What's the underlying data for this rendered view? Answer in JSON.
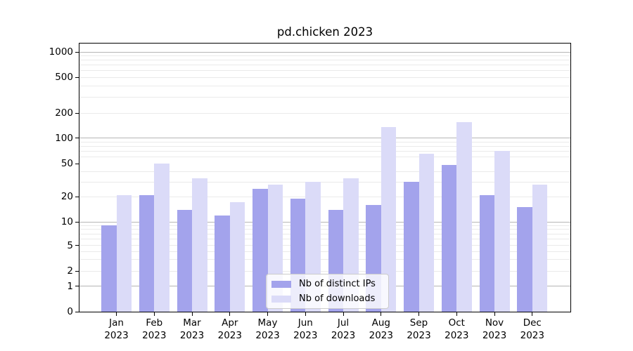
{
  "title": "pd.chicken 2023",
  "chart_data": {
    "type": "bar",
    "title": "pd.chicken 2023",
    "categories": [
      "Jan 2023",
      "Feb 2023",
      "Mar 2023",
      "Apr 2023",
      "May 2023",
      "Jun 2023",
      "Jul 2023",
      "Aug 2023",
      "Sep 2023",
      "Oct 2023",
      "Nov 2023",
      "Dec 2023"
    ],
    "series": [
      {
        "name": "Nb of distinct IPs",
        "color": "#a3a3ec",
        "values": [
          9,
          21,
          14,
          12,
          25,
          19,
          14,
          16,
          30,
          48,
          21,
          15
        ]
      },
      {
        "name": "Nb of downloads",
        "color": "#dbdbf8",
        "values": [
          21,
          50,
          33,
          17,
          28,
          30,
          33,
          135,
          65,
          155,
          70,
          28
        ]
      }
    ],
    "xlabel": "",
    "ylabel": "",
    "yaxis": {
      "scale": "symlog",
      "ticks": [
        1000,
        500,
        200,
        100,
        50,
        20,
        10,
        5,
        2,
        1,
        0
      ],
      "major_grid_values": [
        1,
        10,
        100,
        1000
      ],
      "minor_grid_values": [
        2,
        3,
        4,
        5,
        6,
        7,
        8,
        9,
        20,
        30,
        40,
        60,
        70,
        80,
        90,
        200,
        300,
        400,
        500,
        600,
        700,
        800,
        900
      ],
      "ylim": [
        0,
        1260
      ],
      "grid": true
    },
    "legend_position": "lower center"
  },
  "legend": {
    "entries": [
      "Nb of distinct IPs",
      "Nb of downloads"
    ]
  },
  "colors": {
    "series1": "#a3a3ec",
    "series2": "#dbdbf8",
    "major_grid": "#b5b5b5",
    "minor_grid": "#eaeaea",
    "axis": "#000000",
    "background": "#ffffff",
    "legend_border": "#cccccc"
  }
}
